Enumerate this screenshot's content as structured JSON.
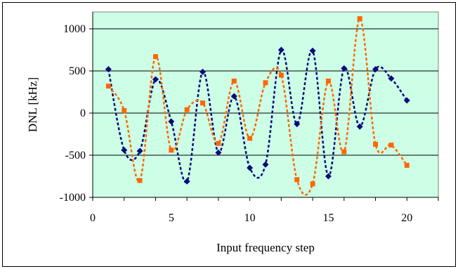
{
  "chart_data": {
    "type": "line",
    "title": "",
    "xlabel": "Input frequency step",
    "ylabel": "DNL [kHz]",
    "xlim": [
      0,
      22
    ],
    "ylim": [
      -1000,
      1200
    ],
    "x_ticks": [
      0,
      5,
      10,
      15,
      20
    ],
    "y_ticks": [
      -1000,
      -500,
      0,
      500,
      1000
    ],
    "grid": "horizontal",
    "legend": "none",
    "plot_background": "#ccffe6",
    "series": [
      {
        "color": "#0a0a7a",
        "marker": "diamond",
        "line_style": "dashed",
        "x": [
          1,
          2,
          3,
          4,
          5,
          6,
          7,
          8,
          9,
          10,
          11,
          12,
          13,
          14,
          15,
          16,
          17,
          18,
          19,
          20
        ],
        "values": [
          520,
          -440,
          -450,
          400,
          -100,
          -810,
          490,
          -470,
          200,
          -650,
          -610,
          750,
          -130,
          740,
          -750,
          530,
          -160,
          520,
          410,
          150
        ]
      },
      {
        "color": "#ff6600",
        "marker": "square",
        "line_style": "dashed",
        "x": [
          1,
          2,
          3,
          4,
          5,
          6,
          7,
          8,
          9,
          10,
          11,
          12,
          13,
          14,
          15,
          16,
          17,
          18,
          19,
          20
        ],
        "values": [
          320,
          30,
          -800,
          670,
          -440,
          40,
          120,
          -360,
          380,
          -300,
          360,
          450,
          -790,
          -840,
          380,
          -460,
          1120,
          -370,
          -380,
          -620
        ]
      }
    ]
  }
}
